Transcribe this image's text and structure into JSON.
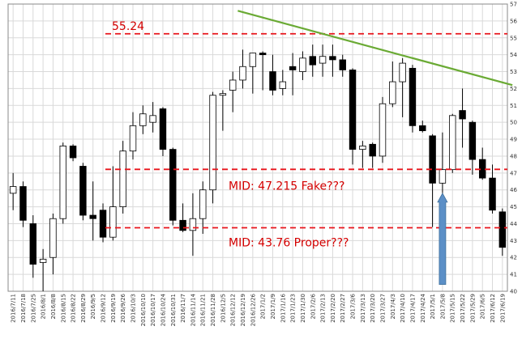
{
  "chart_data": {
    "type": "candlestick",
    "ylim": [
      40,
      57
    ],
    "ytick_labels": [
      "40",
      "41",
      "42",
      "43",
      "44",
      "45",
      "46",
      "47",
      "48",
      "49",
      "50",
      "51",
      "52",
      "53",
      "54",
      "55",
      "56",
      "57"
    ],
    "x_labels": [
      "2016/7/11",
      "2016/7/18",
      "2016/7/25",
      "2016/8/1",
      "2016/8/8",
      "2016/8/15",
      "2016/8/22",
      "2016/8/29",
      "2016/9/5",
      "2016/9/12",
      "2016/9/19",
      "2016/9/26",
      "2016/10/3",
      "2016/10/10",
      "2016/10/17",
      "2016/10/24",
      "2016/10/31",
      "2016/11/7",
      "2016/11/14",
      "2016/11/21",
      "2016/11/28",
      "2016/12/5",
      "2016/12/12",
      "2016/12/19",
      "2016/12/26",
      "2017/1/2",
      "2017/1/9",
      "2017/1/16",
      "2017/1/23",
      "2017/1/30",
      "2017/2/6",
      "2017/2/13",
      "2017/2/20",
      "2017/2/27",
      "2017/3/6",
      "2017/3/13",
      "2017/3/20",
      "2017/3/27",
      "2017/4/3",
      "2017/4/10",
      "2017/4/17",
      "2017/4/24",
      "2017/5/1",
      "2017/5/8",
      "2017/5/15",
      "2017/5/22",
      "2017/5/29",
      "2017/6/5",
      "2017/6/12",
      "2017/6/19"
    ],
    "candles": [
      {
        "o": 45.8,
        "h": 47.0,
        "l": 44.8,
        "c": 46.2
      },
      {
        "o": 46.2,
        "h": 46.5,
        "l": 43.8,
        "c": 44.2
      },
      {
        "o": 44.0,
        "h": 44.5,
        "l": 40.8,
        "c": 41.6
      },
      {
        "o": 41.7,
        "h": 42.5,
        "l": 40.0,
        "c": 41.9
      },
      {
        "o": 42.0,
        "h": 44.6,
        "l": 41.0,
        "c": 44.3
      },
      {
        "o": 44.3,
        "h": 48.8,
        "l": 44.0,
        "c": 48.6
      },
      {
        "o": 48.6,
        "h": 48.7,
        "l": 47.7,
        "c": 47.9
      },
      {
        "o": 47.4,
        "h": 47.6,
        "l": 44.2,
        "c": 44.5
      },
      {
        "o": 44.5,
        "h": 46.5,
        "l": 43.0,
        "c": 44.3
      },
      {
        "o": 44.8,
        "h": 45.2,
        "l": 42.9,
        "c": 43.2
      },
      {
        "o": 43.2,
        "h": 47.4,
        "l": 43.0,
        "c": 45.0
      },
      {
        "o": 45.0,
        "h": 48.9,
        "l": 44.6,
        "c": 48.3
      },
      {
        "o": 48.3,
        "h": 50.6,
        "l": 47.8,
        "c": 49.8
      },
      {
        "o": 49.8,
        "h": 51.0,
        "l": 49.3,
        "c": 50.5
      },
      {
        "o": 50.0,
        "h": 51.2,
        "l": 49.4,
        "c": 50.4
      },
      {
        "o": 50.8,
        "h": 50.9,
        "l": 48.0,
        "c": 48.4
      },
      {
        "o": 48.4,
        "h": 48.5,
        "l": 43.9,
        "c": 44.2
      },
      {
        "o": 44.2,
        "h": 45.2,
        "l": 43.5,
        "c": 43.6
      },
      {
        "o": 43.6,
        "h": 45.8,
        "l": 42.1,
        "c": 44.3
      },
      {
        "o": 44.3,
        "h": 46.5,
        "l": 43.4,
        "c": 46.0
      },
      {
        "o": 46.0,
        "h": 51.8,
        "l": 45.2,
        "c": 51.6
      },
      {
        "o": 51.6,
        "h": 51.9,
        "l": 49.5,
        "c": 51.7
      },
      {
        "o": 51.9,
        "h": 53.0,
        "l": 50.6,
        "c": 52.5
      },
      {
        "o": 52.5,
        "h": 54.3,
        "l": 52.0,
        "c": 53.3
      },
      {
        "o": 53.3,
        "h": 54.0,
        "l": 51.7,
        "c": 54.1
      },
      {
        "o": 54.1,
        "h": 54.2,
        "l": 51.9,
        "c": 54.0
      },
      {
        "o": 53.0,
        "h": 54.0,
        "l": 51.6,
        "c": 51.9
      },
      {
        "o": 52.0,
        "h": 53.1,
        "l": 51.6,
        "c": 52.4
      },
      {
        "o": 53.3,
        "h": 54.1,
        "l": 51.6,
        "c": 53.1
      },
      {
        "o": 53.0,
        "h": 54.2,
        "l": 52.5,
        "c": 53.8
      },
      {
        "o": 53.9,
        "h": 54.6,
        "l": 52.7,
        "c": 53.4
      },
      {
        "o": 53.5,
        "h": 54.6,
        "l": 52.7,
        "c": 53.9
      },
      {
        "o": 53.9,
        "h": 54.6,
        "l": 52.7,
        "c": 53.7
      },
      {
        "o": 53.7,
        "h": 54.0,
        "l": 52.7,
        "c": 53.1
      },
      {
        "o": 53.1,
        "h": 53.2,
        "l": 47.5,
        "c": 48.4
      },
      {
        "o": 48.4,
        "h": 48.9,
        "l": 47.3,
        "c": 48.6
      },
      {
        "o": 48.7,
        "h": 48.8,
        "l": 47.3,
        "c": 48.0
      },
      {
        "o": 48.0,
        "h": 51.5,
        "l": 47.6,
        "c": 51.1
      },
      {
        "o": 51.1,
        "h": 53.6,
        "l": 50.9,
        "c": 52.4
      },
      {
        "o": 52.4,
        "h": 53.8,
        "l": 50.3,
        "c": 53.5
      },
      {
        "o": 53.2,
        "h": 53.4,
        "l": 49.4,
        "c": 49.8
      },
      {
        "o": 49.8,
        "h": 50.1,
        "l": 49.4,
        "c": 49.5
      },
      {
        "o": 49.2,
        "h": 49.3,
        "l": 43.8,
        "c": 46.4
      },
      {
        "o": 46.4,
        "h": 49.4,
        "l": 45.2,
        "c": 47.2
      },
      {
        "o": 47.2,
        "h": 50.5,
        "l": 47.0,
        "c": 50.4
      },
      {
        "o": 50.7,
        "h": 52.0,
        "l": 48.5,
        "c": 50.2
      },
      {
        "o": 50.0,
        "h": 50.1,
        "l": 46.9,
        "c": 47.8
      },
      {
        "o": 47.8,
        "h": 48.5,
        "l": 46.6,
        "c": 46.7
      },
      {
        "o": 46.7,
        "h": 47.5,
        "l": 44.6,
        "c": 44.8
      },
      {
        "o": 44.7,
        "h": 44.9,
        "l": 42.1,
        "c": 42.6
      }
    ],
    "hlines": [
      {
        "value": 55.24,
        "color": "#e8141b",
        "label": "55.24"
      },
      {
        "value": 47.215,
        "color": "#e8141b",
        "label": "MID: 47.215 Fake???"
      },
      {
        "value": 43.76,
        "color": "#e8141b",
        "label": "MID: 43.76 Proper???"
      }
    ],
    "trendline": {
      "color": "#6aaa34",
      "x1": 23.0,
      "y1": 56.6,
      "x2": 50.5,
      "y2": 52.2
    },
    "arrow": {
      "color": "#5b8fc7",
      "x": 43,
      "y_from": 40.4,
      "y_to": 45.8
    },
    "colors": {
      "bear": "#000000",
      "bull": "#ffffff",
      "grid": "#d9d9d9"
    }
  }
}
